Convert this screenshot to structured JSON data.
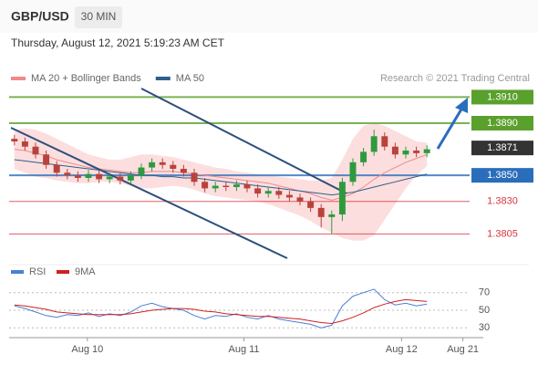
{
  "header": {
    "symbol": "GBP/USD",
    "interval": "30 MIN",
    "datetime": "Thursday, August 12, 2021 5:19:23 AM CET"
  },
  "chart_data": [
    {
      "type": "candlestick",
      "annotation": "Research © 2021 Trading Central",
      "categories": [
        null,
        null,
        null,
        null,
        null,
        null,
        null,
        null,
        null,
        null,
        null,
        null,
        null,
        null,
        null,
        null,
        null,
        null,
        null,
        null,
        null,
        null,
        null,
        null,
        null,
        null,
        null,
        null,
        null,
        null,
        null,
        null,
        null,
        null,
        null,
        null,
        null,
        null,
        null,
        null
      ],
      "open": [
        1.3878,
        1.3876,
        1.3872,
        1.3866,
        1.3858,
        1.3852,
        1.385,
        1.3848,
        1.3851,
        1.3847,
        1.3849,
        1.3846,
        1.385,
        1.3856,
        1.386,
        1.3858,
        1.3855,
        1.3852,
        1.3845,
        1.384,
        1.3842,
        1.3841,
        1.3843,
        1.384,
        1.3836,
        1.3838,
        1.3835,
        1.3833,
        1.383,
        1.3825,
        1.3818,
        1.382,
        1.3845,
        1.386,
        1.3868,
        1.388,
        1.3872,
        1.3866,
        1.3869,
        1.3867
      ],
      "high": [
        1.3881,
        1.3879,
        1.3875,
        1.3869,
        1.3861,
        1.3855,
        1.3853,
        1.3854,
        1.3854,
        1.3852,
        1.3852,
        1.3853,
        1.3859,
        1.3863,
        1.3863,
        1.3861,
        1.3858,
        1.3855,
        1.3848,
        1.3845,
        1.3845,
        1.3846,
        1.3846,
        1.3843,
        1.3841,
        1.3841,
        1.3838,
        1.3836,
        1.3833,
        1.3828,
        1.3823,
        1.3848,
        1.3863,
        1.3871,
        1.3885,
        1.3883,
        1.3875,
        1.3872,
        1.3872,
        1.3873
      ],
      "low": [
        1.3873,
        1.3869,
        1.3863,
        1.3855,
        1.3849,
        1.3847,
        1.3845,
        1.3845,
        1.3844,
        1.3844,
        1.3843,
        1.3843,
        1.3847,
        1.3853,
        1.3855,
        1.3852,
        1.3849,
        1.3842,
        1.3837,
        1.3837,
        1.3838,
        1.3838,
        1.3837,
        1.3833,
        1.3833,
        1.3832,
        1.383,
        1.3827,
        1.3822,
        1.381,
        1.3805,
        1.3815,
        1.3842,
        1.3857,
        1.3865,
        1.3869,
        1.3863,
        1.3863,
        1.3864,
        1.3864
      ],
      "close": [
        1.3876,
        1.3872,
        1.3866,
        1.3858,
        1.3852,
        1.385,
        1.3848,
        1.3851,
        1.3847,
        1.3849,
        1.3846,
        1.385,
        1.3856,
        1.386,
        1.3858,
        1.3855,
        1.3852,
        1.3845,
        1.384,
        1.3842,
        1.3841,
        1.3843,
        1.384,
        1.3836,
        1.3838,
        1.3835,
        1.3833,
        1.383,
        1.3825,
        1.3818,
        1.382,
        1.3845,
        1.386,
        1.3868,
        1.388,
        1.3872,
        1.3866,
        1.3869,
        1.3867,
        1.387
      ],
      "up_color": "#2e9a3e",
      "down_color": "#b8433a",
      "series": [
        {
          "name": "MA 20 + Bollinger Bands",
          "color": "#f08a8a",
          "values": [
            1.387,
            1.3869,
            1.3867,
            1.3865,
            1.3862,
            1.386,
            1.3858,
            1.3856,
            1.3855,
            1.3854,
            1.3853,
            1.3852,
            1.3852,
            1.3853,
            1.3853,
            1.3853,
            1.3852,
            1.3851,
            1.385,
            1.3849,
            1.3848,
            1.3847,
            1.3846,
            1.3845,
            1.3844,
            1.3842,
            1.384,
            1.3838,
            1.3836,
            1.3833,
            1.3831,
            1.3833,
            1.3836,
            1.3841,
            1.3847,
            1.3852,
            1.3856,
            1.386,
            1.3863,
            1.3866
          ]
        },
        {
          "name": "MA 50",
          "color": "#2f5f8f",
          "values": [
            1.3862,
            1.3861,
            1.386,
            1.3859,
            1.3858,
            1.3857,
            1.3856,
            1.3855,
            1.3854,
            1.3853,
            1.3852,
            1.3851,
            1.385,
            1.385,
            1.3849,
            1.3849,
            1.3848,
            1.3848,
            1.3847,
            1.3846,
            1.3845,
            1.3844,
            1.3843,
            1.3842,
            1.3841,
            1.384,
            1.3839,
            1.3838,
            1.3837,
            1.3836,
            1.3835,
            1.3836,
            1.3837,
            1.3839,
            1.3841,
            1.3843,
            1.3845,
            1.3847,
            1.3849,
            1.3851
          ]
        }
      ],
      "bands": {
        "color": "#fcdede",
        "upper": [
          1.3885,
          1.3886,
          1.3885,
          1.3882,
          1.3878,
          1.3874,
          1.387,
          1.3866,
          1.3864,
          1.3862,
          1.3862,
          1.3864,
          1.3866,
          1.3866,
          1.3865,
          1.3864,
          1.3862,
          1.386,
          1.3858,
          1.3856,
          1.3855,
          1.3853,
          1.3852,
          1.3851,
          1.385,
          1.3849,
          1.3848,
          1.3847,
          1.3846,
          1.3846,
          1.3848,
          1.3862,
          1.3878,
          1.3888,
          1.389,
          1.3888,
          1.3884,
          1.388,
          1.3876,
          1.3875
        ],
        "lower": [
          1.3855,
          1.3852,
          1.3849,
          1.3848,
          1.3846,
          1.3845,
          1.3844,
          1.3844,
          1.3845,
          1.3845,
          1.3844,
          1.3842,
          1.384,
          1.384,
          1.3841,
          1.3842,
          1.3841,
          1.3839,
          1.3836,
          1.3834,
          1.3833,
          1.3832,
          1.3831,
          1.383,
          1.3828,
          1.3825,
          1.3822,
          1.3819,
          1.3815,
          1.381,
          1.3806,
          1.3802,
          1.38,
          1.38,
          1.3804,
          1.3816,
          1.3828,
          1.384,
          1.385,
          1.3857
        ]
      },
      "levels": [
        {
          "value": 1.391,
          "label": "1.3910",
          "color": "#5aa02c",
          "boxed": true
        },
        {
          "value": 1.389,
          "label": "1.3890",
          "color": "#5aa02c",
          "boxed": true
        },
        {
          "value": 1.3871,
          "label": "1.3871",
          "color": "#333333",
          "boxed": true
        },
        {
          "value": 1.385,
          "label": "1.3850",
          "color": "#2a6ebb",
          "boxed": true
        },
        {
          "value": 1.383,
          "label": "1.3830",
          "color": "#d9363e",
          "boxed": false
        },
        {
          "value": 1.3805,
          "label": "1.3805",
          "color": "#d9363e",
          "boxed": false
        }
      ],
      "xlim": [
        -0.5,
        44.5
      ],
      "ylim": [
        1.3785,
        1.3918
      ]
    },
    {
      "type": "line",
      "xlim": [
        -0.5,
        44.5
      ],
      "ylim": [
        22,
        78
      ],
      "yticks": [
        70,
        50,
        30
      ],
      "grid": true,
      "xticks": [
        {
          "value": 6.9,
          "label": "Aug 10"
        },
        {
          "value": 21.7,
          "label": "Aug 11"
        },
        {
          "value": 36.6,
          "label": "Aug 12"
        },
        {
          "value": 42.4,
          "label": "Aug 21"
        }
      ],
      "series": [
        {
          "name": "RSI",
          "color": "#4a7fd4",
          "values": [
            55,
            52,
            48,
            44,
            42,
            45,
            44,
            47,
            43,
            46,
            44,
            48,
            55,
            58,
            54,
            52,
            50,
            44,
            40,
            44,
            43,
            46,
            42,
            40,
            44,
            40,
            38,
            36,
            34,
            30,
            33,
            55,
            66,
            70,
            74,
            62,
            56,
            58,
            55,
            57
          ]
        },
        {
          "name": "9MA",
          "color": "#d02020",
          "values": [
            56,
            55,
            53,
            51,
            48,
            47,
            46,
            45,
            45,
            45,
            45,
            46,
            48,
            50,
            51,
            52,
            52,
            51,
            49,
            48,
            46,
            45,
            44,
            43,
            43,
            42,
            41,
            40,
            38,
            36,
            35,
            38,
            42,
            47,
            53,
            57,
            60,
            62,
            61,
            60
          ]
        }
      ]
    }
  ]
}
